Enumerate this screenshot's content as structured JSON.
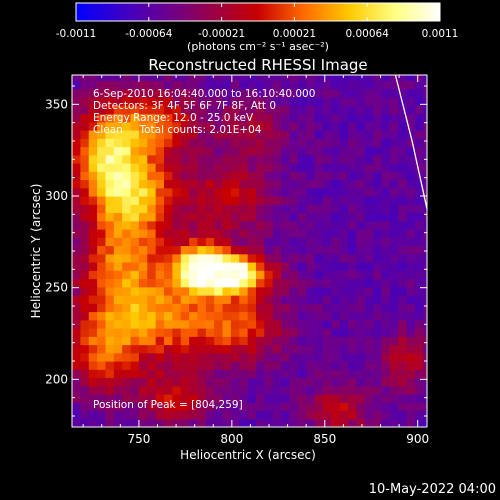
{
  "chart_data": {
    "type": "heatmap",
    "title": "Reconstructed RHESSI Image",
    "xlabel": "Heliocentric X (arcsec)",
    "ylabel": "Heliocentric Y (arcsec)",
    "xlim": [
      714,
      905
    ],
    "ylim": [
      174,
      366
    ],
    "x_ticks": [
      750,
      800,
      850,
      900
    ],
    "y_ticks": [
      200,
      250,
      300,
      350
    ],
    "colorbar": {
      "min": -0.0011,
      "max": 0.0011,
      "ticks": [
        "-0.0011",
        "-0.00064",
        "-0.00021",
        "0.00021",
        "0.00064",
        "0.0011"
      ],
      "unit_label": "(photons cm⁻² s⁻¹ asec⁻²)",
      "colormap": [
        "#0000ff",
        "#3b00c8",
        "#6a0090",
        "#9a0046",
        "#c80000",
        "#ff6a00",
        "#ffc800",
        "#ffff80",
        "#ffffff"
      ]
    },
    "annotations": [
      "6-Sep-2010 16:04:40.000 to 16:10:40.000",
      "Detectors: 3F 4F 5F 6F 7F 8F, Att 0",
      "Energy Range: 12.0 - 25.0 keV",
      "Clean     Total counts: 2.01E+04"
    ],
    "peak_label": "Position of Peak = [804,259]",
    "peak_position": [
      804,
      259
    ],
    "limb_arc": [
      [
        888,
        366
      ],
      [
        897,
        330
      ],
      [
        905,
        293
      ]
    ],
    "emission_sources": [
      {
        "x": 800,
        "y": 258,
        "sx": 14,
        "sy": 7,
        "amp": 1.0
      },
      {
        "x": 783,
        "y": 262,
        "sx": 12,
        "sy": 10,
        "amp": 0.75
      },
      {
        "x": 733,
        "y": 322,
        "sx": 14,
        "sy": 18,
        "amp": 0.7
      },
      {
        "x": 750,
        "y": 300,
        "sx": 16,
        "sy": 16,
        "amp": 0.55
      },
      {
        "x": 740,
        "y": 260,
        "sx": 16,
        "sy": 22,
        "amp": 0.55
      },
      {
        "x": 765,
        "y": 232,
        "sx": 20,
        "sy": 16,
        "amp": 0.5
      },
      {
        "x": 760,
        "y": 340,
        "sx": 18,
        "sy": 12,
        "amp": 0.45
      },
      {
        "x": 730,
        "y": 215,
        "sx": 14,
        "sy": 16,
        "amp": 0.45
      },
      {
        "x": 805,
        "y": 230,
        "sx": 16,
        "sy": 14,
        "amp": 0.45
      },
      {
        "x": 800,
        "y": 300,
        "sx": 16,
        "sy": 14,
        "amp": 0.35
      },
      {
        "x": 770,
        "y": 190,
        "sx": 14,
        "sy": 10,
        "amp": 0.35
      },
      {
        "x": 858,
        "y": 184,
        "sx": 12,
        "sy": 10,
        "amp": 0.32
      },
      {
        "x": 893,
        "y": 210,
        "sx": 10,
        "sy": 12,
        "amp": 0.3
      },
      {
        "x": 812,
        "y": 338,
        "sx": 12,
        "sy": 10,
        "amp": 0.25
      }
    ]
  },
  "timestamp": "10-May-2022 04:00"
}
